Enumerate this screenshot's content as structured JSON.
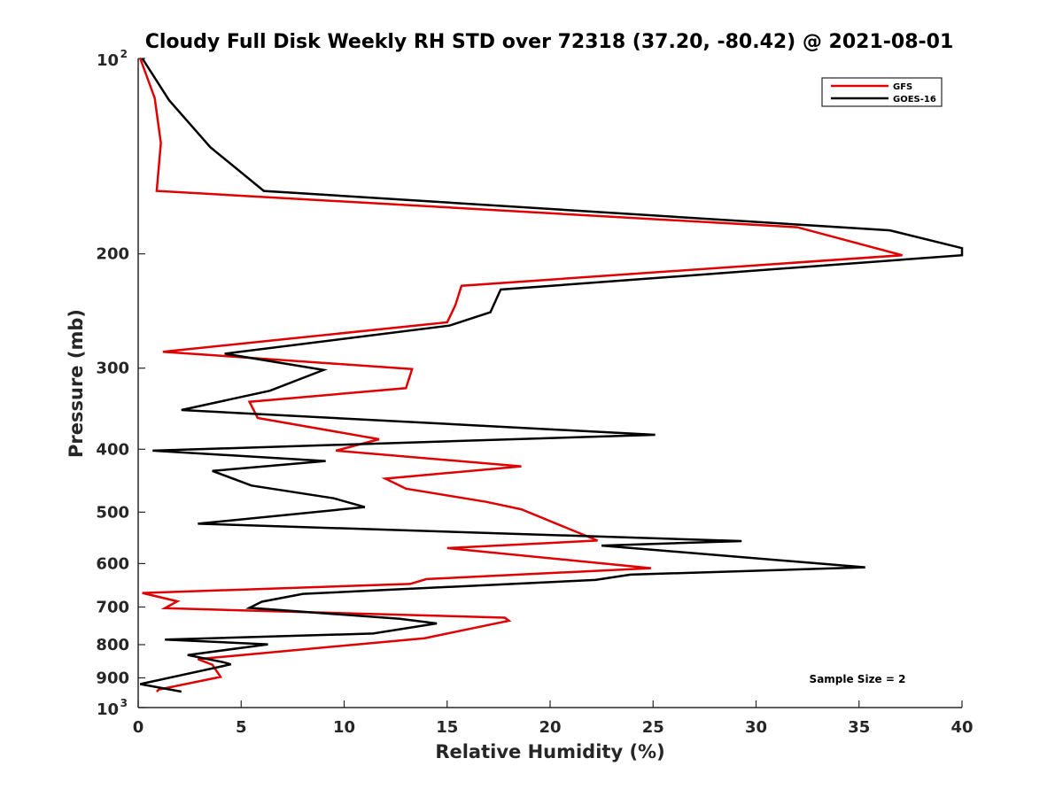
{
  "chart_data": {
    "type": "line",
    "title": "Cloudy Full Disk Weekly RH STD over 72318 (37.20, -80.42) @ 2021-08-01",
    "xlabel": "Relative Humidity (%)",
    "ylabel": "Pressure (mb)",
    "xlim": [
      0,
      40
    ],
    "ylim": [
      100,
      1000
    ],
    "yscale": "log",
    "y_reversed": true,
    "grid": false,
    "legend_position": "top-right",
    "x_ticks": [
      "0",
      "5",
      "10",
      "15",
      "20",
      "25",
      "30",
      "35",
      "40"
    ],
    "y_ticks": [
      {
        "value": 100,
        "base": "10",
        "exp": "2"
      },
      {
        "value": 200,
        "label": "200"
      },
      {
        "value": 300,
        "label": "300"
      },
      {
        "value": 400,
        "label": "400"
      },
      {
        "value": 500,
        "label": "500"
      },
      {
        "value": 600,
        "label": "600"
      },
      {
        "value": 700,
        "label": "700"
      },
      {
        "value": 800,
        "label": "800"
      },
      {
        "value": 900,
        "label": "900"
      },
      {
        "value": 1000,
        "base": "10",
        "exp": "3"
      }
    ],
    "annotation": "Sample Size = 2",
    "series": [
      {
        "name": "GFS",
        "color": "#e00000",
        "points": [
          [
            0.1,
            100
          ],
          [
            0.8,
            115
          ],
          [
            1.1,
            135
          ],
          [
            0.9,
            160
          ],
          [
            32.0,
            182
          ],
          [
            37.1,
            201
          ],
          [
            15.7,
            224
          ],
          [
            15.4,
            240
          ],
          [
            15.0,
            255
          ],
          [
            1.2,
            283
          ],
          [
            13.3,
            301
          ],
          [
            13.0,
            322
          ],
          [
            5.4,
            338
          ],
          [
            5.8,
            358
          ],
          [
            11.7,
            386
          ],
          [
            9.6,
            402
          ],
          [
            18.6,
            425
          ],
          [
            12.0,
            444
          ],
          [
            13.0,
            460
          ],
          [
            16.9,
            482
          ],
          [
            18.6,
            495
          ],
          [
            22.3,
            553
          ],
          [
            15.0,
            568
          ],
          [
            24.9,
            610
          ],
          [
            14.0,
            634
          ],
          [
            13.2,
            645
          ],
          [
            0.2,
            666
          ],
          [
            1.9,
            686
          ],
          [
            1.3,
            703
          ],
          [
            17.8,
            727
          ],
          [
            18.0,
            735
          ],
          [
            13.9,
            782
          ],
          [
            2.9,
            842
          ],
          [
            3.6,
            859
          ],
          [
            4.0,
            897
          ],
          [
            1.0,
            938
          ],
          [
            0.9,
            945
          ]
        ]
      },
      {
        "name": "GOES-16",
        "color": "#000000",
        "points": [
          [
            0.2,
            100
          ],
          [
            1.5,
            116
          ],
          [
            3.5,
            137
          ],
          [
            6.1,
            160
          ],
          [
            36.5,
            184
          ],
          [
            40.0,
            196
          ],
          [
            40.0,
            201
          ],
          [
            17.6,
            227
          ],
          [
            17.1,
            246
          ],
          [
            15.1,
            258
          ],
          [
            4.2,
            285
          ],
          [
            9.0,
            302
          ],
          [
            6.4,
            325
          ],
          [
            2.1,
            348
          ],
          [
            25.1,
            380
          ],
          [
            0.7,
            402
          ],
          [
            9.1,
            417
          ],
          [
            3.6,
            432
          ],
          [
            5.5,
            455
          ],
          [
            9.5,
            476
          ],
          [
            11.0,
            491
          ],
          [
            2.9,
            521
          ],
          [
            29.3,
            554
          ],
          [
            22.5,
            563
          ],
          [
            35.3,
            608
          ],
          [
            23.9,
            624
          ],
          [
            22.2,
            636
          ],
          [
            8.0,
            668
          ],
          [
            6.0,
            687
          ],
          [
            5.4,
            702
          ],
          [
            12.7,
            730
          ],
          [
            14.5,
            742
          ],
          [
            11.4,
            769
          ],
          [
            1.3,
            786
          ],
          [
            6.3,
            799
          ],
          [
            2.4,
            830
          ],
          [
            4.1,
            851
          ],
          [
            4.5,
            858
          ],
          [
            0.1,
            920
          ],
          [
            2.1,
            945
          ]
        ]
      }
    ]
  }
}
